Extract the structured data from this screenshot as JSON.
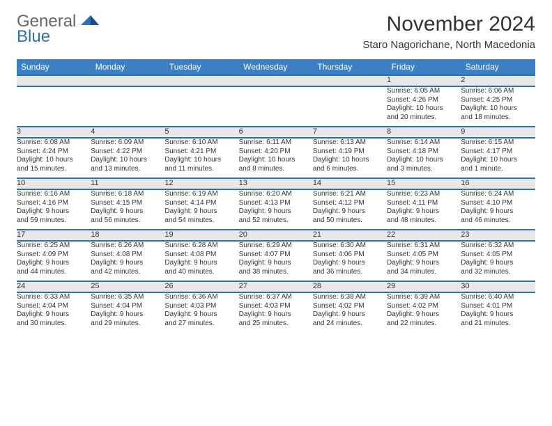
{
  "logo": {
    "line1": "General",
    "line2": "Blue"
  },
  "title": "November 2024",
  "subtitle": "Staro Nagorichane, North Macedonia",
  "colors": {
    "header_bg": "#3b7fc4",
    "header_text": "#ffffff",
    "row_divider": "#2f6fb3",
    "daynum_bg": "#e8e8e8",
    "text": "#333333",
    "logo_blue": "#2f6fb3",
    "logo_gray": "#666666",
    "page_bg": "#ffffff"
  },
  "day_headers": [
    "Sunday",
    "Monday",
    "Tuesday",
    "Wednesday",
    "Thursday",
    "Friday",
    "Saturday"
  ],
  "weeks": [
    {
      "nums": [
        "",
        "",
        "",
        "",
        "",
        "1",
        "2"
      ],
      "cells": [
        null,
        null,
        null,
        null,
        null,
        {
          "sunrise": "Sunrise: 6:05 AM",
          "sunset": "Sunset: 4:26 PM",
          "day1": "Daylight: 10 hours",
          "day2": "and 20 minutes."
        },
        {
          "sunrise": "Sunrise: 6:06 AM",
          "sunset": "Sunset: 4:25 PM",
          "day1": "Daylight: 10 hours",
          "day2": "and 18 minutes."
        }
      ]
    },
    {
      "nums": [
        "3",
        "4",
        "5",
        "6",
        "7",
        "8",
        "9"
      ],
      "cells": [
        {
          "sunrise": "Sunrise: 6:08 AM",
          "sunset": "Sunset: 4:24 PM",
          "day1": "Daylight: 10 hours",
          "day2": "and 15 minutes."
        },
        {
          "sunrise": "Sunrise: 6:09 AM",
          "sunset": "Sunset: 4:22 PM",
          "day1": "Daylight: 10 hours",
          "day2": "and 13 minutes."
        },
        {
          "sunrise": "Sunrise: 6:10 AM",
          "sunset": "Sunset: 4:21 PM",
          "day1": "Daylight: 10 hours",
          "day2": "and 11 minutes."
        },
        {
          "sunrise": "Sunrise: 6:11 AM",
          "sunset": "Sunset: 4:20 PM",
          "day1": "Daylight: 10 hours",
          "day2": "and 8 minutes."
        },
        {
          "sunrise": "Sunrise: 6:13 AM",
          "sunset": "Sunset: 4:19 PM",
          "day1": "Daylight: 10 hours",
          "day2": "and 6 minutes."
        },
        {
          "sunrise": "Sunrise: 6:14 AM",
          "sunset": "Sunset: 4:18 PM",
          "day1": "Daylight: 10 hours",
          "day2": "and 3 minutes."
        },
        {
          "sunrise": "Sunrise: 6:15 AM",
          "sunset": "Sunset: 4:17 PM",
          "day1": "Daylight: 10 hours",
          "day2": "and 1 minute."
        }
      ]
    },
    {
      "nums": [
        "10",
        "11",
        "12",
        "13",
        "14",
        "15",
        "16"
      ],
      "cells": [
        {
          "sunrise": "Sunrise: 6:16 AM",
          "sunset": "Sunset: 4:16 PM",
          "day1": "Daylight: 9 hours",
          "day2": "and 59 minutes."
        },
        {
          "sunrise": "Sunrise: 6:18 AM",
          "sunset": "Sunset: 4:15 PM",
          "day1": "Daylight: 9 hours",
          "day2": "and 56 minutes."
        },
        {
          "sunrise": "Sunrise: 6:19 AM",
          "sunset": "Sunset: 4:14 PM",
          "day1": "Daylight: 9 hours",
          "day2": "and 54 minutes."
        },
        {
          "sunrise": "Sunrise: 6:20 AM",
          "sunset": "Sunset: 4:13 PM",
          "day1": "Daylight: 9 hours",
          "day2": "and 52 minutes."
        },
        {
          "sunrise": "Sunrise: 6:21 AM",
          "sunset": "Sunset: 4:12 PM",
          "day1": "Daylight: 9 hours",
          "day2": "and 50 minutes."
        },
        {
          "sunrise": "Sunrise: 6:23 AM",
          "sunset": "Sunset: 4:11 PM",
          "day1": "Daylight: 9 hours",
          "day2": "and 48 minutes."
        },
        {
          "sunrise": "Sunrise: 6:24 AM",
          "sunset": "Sunset: 4:10 PM",
          "day1": "Daylight: 9 hours",
          "day2": "and 46 minutes."
        }
      ]
    },
    {
      "nums": [
        "17",
        "18",
        "19",
        "20",
        "21",
        "22",
        "23"
      ],
      "cells": [
        {
          "sunrise": "Sunrise: 6:25 AM",
          "sunset": "Sunset: 4:09 PM",
          "day1": "Daylight: 9 hours",
          "day2": "and 44 minutes."
        },
        {
          "sunrise": "Sunrise: 6:26 AM",
          "sunset": "Sunset: 4:08 PM",
          "day1": "Daylight: 9 hours",
          "day2": "and 42 minutes."
        },
        {
          "sunrise": "Sunrise: 6:28 AM",
          "sunset": "Sunset: 4:08 PM",
          "day1": "Daylight: 9 hours",
          "day2": "and 40 minutes."
        },
        {
          "sunrise": "Sunrise: 6:29 AM",
          "sunset": "Sunset: 4:07 PM",
          "day1": "Daylight: 9 hours",
          "day2": "and 38 minutes."
        },
        {
          "sunrise": "Sunrise: 6:30 AM",
          "sunset": "Sunset: 4:06 PM",
          "day1": "Daylight: 9 hours",
          "day2": "and 36 minutes."
        },
        {
          "sunrise": "Sunrise: 6:31 AM",
          "sunset": "Sunset: 4:05 PM",
          "day1": "Daylight: 9 hours",
          "day2": "and 34 minutes."
        },
        {
          "sunrise": "Sunrise: 6:32 AM",
          "sunset": "Sunset: 4:05 PM",
          "day1": "Daylight: 9 hours",
          "day2": "and 32 minutes."
        }
      ]
    },
    {
      "nums": [
        "24",
        "25",
        "26",
        "27",
        "28",
        "29",
        "30"
      ],
      "cells": [
        {
          "sunrise": "Sunrise: 6:33 AM",
          "sunset": "Sunset: 4:04 PM",
          "day1": "Daylight: 9 hours",
          "day2": "and 30 minutes."
        },
        {
          "sunrise": "Sunrise: 6:35 AM",
          "sunset": "Sunset: 4:04 PM",
          "day1": "Daylight: 9 hours",
          "day2": "and 29 minutes."
        },
        {
          "sunrise": "Sunrise: 6:36 AM",
          "sunset": "Sunset: 4:03 PM",
          "day1": "Daylight: 9 hours",
          "day2": "and 27 minutes."
        },
        {
          "sunrise": "Sunrise: 6:37 AM",
          "sunset": "Sunset: 4:03 PM",
          "day1": "Daylight: 9 hours",
          "day2": "and 25 minutes."
        },
        {
          "sunrise": "Sunrise: 6:38 AM",
          "sunset": "Sunset: 4:02 PM",
          "day1": "Daylight: 9 hours",
          "day2": "and 24 minutes."
        },
        {
          "sunrise": "Sunrise: 6:39 AM",
          "sunset": "Sunset: 4:02 PM",
          "day1": "Daylight: 9 hours",
          "day2": "and 22 minutes."
        },
        {
          "sunrise": "Sunrise: 6:40 AM",
          "sunset": "Sunset: 4:01 PM",
          "day1": "Daylight: 9 hours",
          "day2": "and 21 minutes."
        }
      ]
    }
  ]
}
